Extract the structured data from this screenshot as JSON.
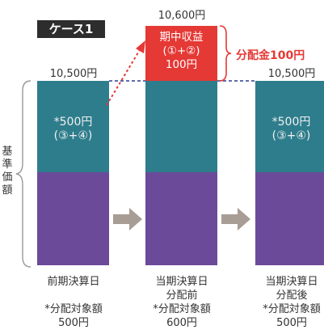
{
  "case_label": "ケース1",
  "axis_label": [
    "基",
    "準",
    "価",
    "額"
  ],
  "bars": [
    {
      "price_label": "10,500円",
      "middle_text": [
        "*500円",
        "(③+④)"
      ],
      "bottom_text": [
        "前期決算日",
        "",
        "*分配対象額",
        "500円"
      ]
    },
    {
      "price_label": "10,600円",
      "red_text": [
        "期中収益",
        "(①+②)",
        "100円"
      ],
      "bottom_text": [
        "当期決算日",
        "分配前",
        "*分配対象額",
        "600円"
      ]
    },
    {
      "price_label": "10,500円",
      "middle_text": [
        "*500円",
        "(③+④)"
      ],
      "bottom_text": [
        "当期決算日",
        "分配後",
        "*分配対象額",
        "500円"
      ]
    }
  ],
  "distribution_label": "分配金100円",
  "colors": {
    "teal": "#2e7d8c",
    "purple": "#6c4a9a",
    "red": "#e53935",
    "arrow": "#a89d95",
    "dark": "#2d2d2d"
  }
}
